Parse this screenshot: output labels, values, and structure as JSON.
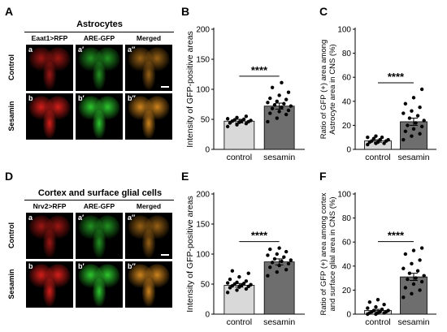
{
  "panels": {
    "A": "A",
    "B": "B",
    "C": "C",
    "D": "D",
    "E": "E",
    "F": "F"
  },
  "imageA": {
    "title": "Astrocytes",
    "cols": [
      "Eaat1>RFP",
      "ARE-GFP",
      "Merged"
    ],
    "rows": [
      "Control",
      "Sesamin"
    ],
    "sub": [
      [
        "a",
        "a′",
        "a″"
      ],
      [
        "b",
        "b′",
        "b″"
      ]
    ]
  },
  "imageD": {
    "title": "Cortex and surface glial cells",
    "cols": [
      "Nrv2>RFP",
      "ARE-GFP",
      "Merged"
    ],
    "rows": [
      "Control",
      "Sesamin"
    ],
    "sub": [
      [
        "a",
        "a′",
        "a″"
      ],
      [
        "b",
        "b′",
        "b″"
      ]
    ]
  },
  "colors": {
    "control_bar": "#d9d9d9",
    "sesamin_bar": "#6e6e6e",
    "red": "#e0201b",
    "green": "#2fd12f"
  },
  "chart_data": [
    {
      "id": "B",
      "type": "bar",
      "categories": [
        "control",
        "sesamin"
      ],
      "values": [
        47,
        72
      ],
      "errors": [
        3,
        5
      ],
      "ylabel": "Intensity of GFP-positive areas",
      "ylim": [
        0,
        200
      ],
      "yticks": [
        0,
        50,
        100,
        150,
        200
      ],
      "significance": "****",
      "points": [
        [
          38,
          41,
          43,
          44,
          45,
          46,
          47,
          47,
          48,
          49,
          50,
          51,
          53,
          55
        ],
        [
          46,
          52,
          58,
          60,
          63,
          65,
          68,
          70,
          72,
          74,
          76,
          78,
          80,
          83,
          85,
          90,
          95,
          103,
          111
        ]
      ]
    },
    {
      "id": "C",
      "type": "bar",
      "categories": [
        "control",
        "sesamin"
      ],
      "values": [
        7,
        23
      ],
      "errors": [
        1,
        3
      ],
      "ylabel": "Ratio of GFP (+) area among Astrocyte area in CNS (%)",
      "ylabel_lines": [
        "Ratio of GFP (+) area among",
        "Astrocyte area in CNS (%)"
      ],
      "ylim": [
        0,
        100
      ],
      "yticks": [
        0,
        20,
        40,
        60,
        80,
        100
      ],
      "significance": "****",
      "points": [
        [
          4,
          5,
          5,
          6,
          6,
          7,
          7,
          8,
          8,
          9,
          10,
          10,
          11
        ],
        [
          8,
          11,
          13,
          15,
          17,
          19,
          20,
          22,
          24,
          26,
          28,
          30,
          32,
          35,
          38,
          43,
          50
        ]
      ]
    },
    {
      "id": "E",
      "type": "bar",
      "categories": [
        "control",
        "sesamin"
      ],
      "values": [
        48,
        87
      ],
      "errors": [
        3,
        5
      ],
      "ylabel": "Intensity of GFP-positive areas",
      "ylim": [
        0,
        200
      ],
      "yticks": [
        0,
        50,
        100,
        150,
        200
      ],
      "significance": "****",
      "points": [
        [
          36,
          40,
          42,
          44,
          45,
          46,
          47,
          48,
          49,
          50,
          51,
          52,
          53,
          55,
          58,
          62,
          68,
          72
        ],
        [
          64,
          70,
          74,
          78,
          81,
          84,
          86,
          88,
          90,
          92,
          95,
          98,
          100,
          104,
          108,
          110
        ]
      ]
    },
    {
      "id": "F",
      "type": "bar",
      "categories": [
        "control",
        "sesamin"
      ],
      "values": [
        3,
        31
      ],
      "errors": [
        1,
        3
      ],
      "ylabel": "Ratio of GFP (+) area among cortex and surface glial area in CNS (%)",
      "ylabel_lines": [
        "Ratio of GFP (+) area among cortex",
        "and surface glial area in CNS (%)"
      ],
      "ylim": [
        0,
        100
      ],
      "yticks": [
        0,
        20,
        40,
        60,
        80,
        100
      ],
      "significance": "****",
      "points": [
        [
          0,
          0,
          1,
          1,
          1,
          2,
          2,
          2,
          3,
          3,
          4,
          5,
          6,
          8,
          10,
          12
        ],
        [
          14,
          17,
          20,
          22,
          25,
          27,
          29,
          30,
          32,
          34,
          36,
          38,
          42,
          45,
          50,
          53,
          55
        ]
      ]
    }
  ]
}
